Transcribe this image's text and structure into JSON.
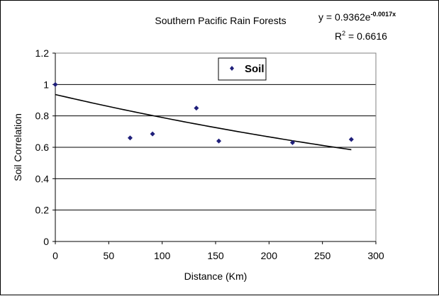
{
  "chart_data": {
    "type": "scatter",
    "title": "Southern Pacific Rain Forests",
    "xlabel": "Distance (Km)",
    "ylabel": "Soil Correlation",
    "xlim": [
      0,
      300
    ],
    "ylim": [
      0,
      1.2
    ],
    "xticks": [
      "0",
      "50",
      "100",
      "150",
      "200",
      "250",
      "300"
    ],
    "yticks": [
      "0",
      "0.2",
      "0.4",
      "0.6",
      "0.8",
      "1",
      "1.2"
    ],
    "grid": "horizontal",
    "legend_position": "top-center",
    "series": [
      {
        "name": "Soil",
        "marker": "diamond",
        "color": "#1f1f7a",
        "x": [
          0,
          70,
          91,
          132,
          153,
          222,
          277
        ],
        "y": [
          1.0,
          0.66,
          0.685,
          0.85,
          0.64,
          0.63,
          0.65
        ]
      }
    ],
    "trendline": {
      "type": "exponential",
      "a": 0.9362,
      "b": -0.0017,
      "x_range": [
        0,
        277
      ],
      "color": "#000000"
    },
    "annotations": {
      "equation_base": "y = 0.9362e",
      "equation_exponent": "-0.0017x",
      "r2_base": "R",
      "r2_sup": "2",
      "r2_value": " = 0.6616"
    }
  }
}
